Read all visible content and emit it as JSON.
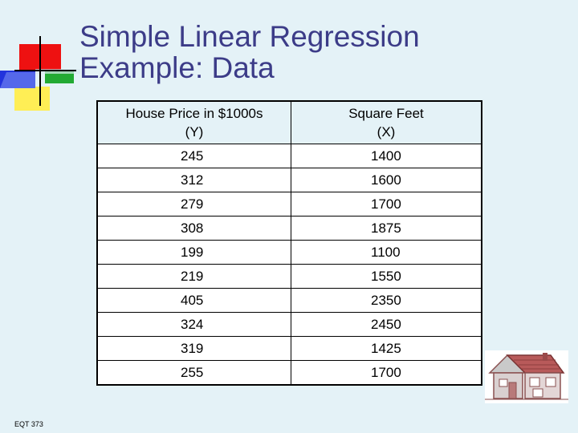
{
  "slide": {
    "title_line1": "Simple Linear Regression",
    "title_line2": "Example:  Data",
    "footer": "EQT 373"
  },
  "table": {
    "headers": [
      {
        "line1": "House Price in $1000s",
        "line2": "(Y)"
      },
      {
        "line1": "Square Feet",
        "line2": "(X)"
      }
    ],
    "rows": [
      [
        "245",
        "1400"
      ],
      [
        "312",
        "1600"
      ],
      [
        "279",
        "1700"
      ],
      [
        "308",
        "1875"
      ],
      [
        "199",
        "1100"
      ],
      [
        "219",
        "1550"
      ],
      [
        "405",
        "2350"
      ],
      [
        "324",
        "2450"
      ],
      [
        "319",
        "1425"
      ],
      [
        "255",
        "1700"
      ]
    ]
  },
  "colors": {
    "background": "#e4f2f7",
    "title": "#3c3c88",
    "logo_red": "#ee1111",
    "logo_blue": "#2233dd",
    "logo_green": "#22aa33",
    "logo_yellow": "#ffee55",
    "house_roof": "#b85a5a"
  },
  "icons": {
    "logo": "color-blocks-logo",
    "clipart": "house-icon"
  }
}
